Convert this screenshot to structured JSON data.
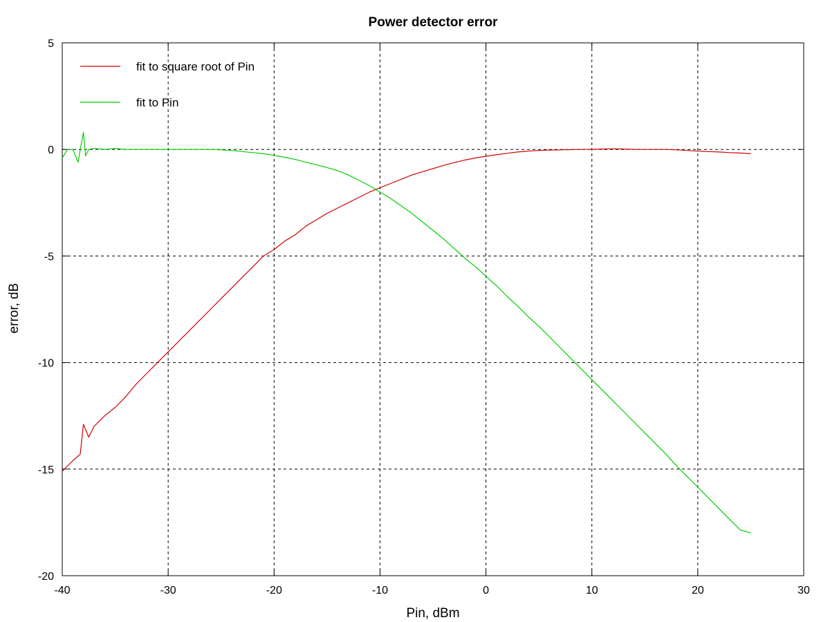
{
  "chart_data": {
    "type": "line",
    "title": "Power detector error",
    "xlabel": "Pin, dBm",
    "ylabel": "error, dB",
    "xlim": [
      -40,
      30
    ],
    "ylim": [
      -20,
      5
    ],
    "xticks": [
      -40,
      -30,
      -20,
      -10,
      0,
      10,
      20,
      30
    ],
    "yticks": [
      -20,
      -15,
      -10,
      -5,
      0,
      5
    ],
    "grid": true,
    "grid_style": "dashed",
    "legend_position": "top-left",
    "series": [
      {
        "name": "fit to square root of Pin",
        "color": "#cc0000",
        "x": [
          -40,
          -39,
          -38.3,
          -38,
          -37.5,
          -37,
          -36,
          -35,
          -34,
          -33,
          -32,
          -31,
          -30,
          -29,
          -28,
          -27,
          -26,
          -25,
          -24,
          -23,
          -22,
          -21,
          -20,
          -19,
          -18,
          -17,
          -16,
          -15,
          -14,
          -13,
          -12,
          -11,
          -10,
          -9,
          -8,
          -7,
          -6,
          -5,
          -4,
          -3,
          -2,
          -1,
          0,
          1,
          2,
          3,
          4,
          5,
          6,
          7,
          8,
          9,
          10,
          11,
          12,
          13,
          14,
          15,
          16,
          17,
          18,
          19,
          20,
          21,
          22,
          23,
          24,
          25
        ],
        "y": [
          -15.1,
          -14.6,
          -14.3,
          -12.9,
          -13.5,
          -13.0,
          -12.5,
          -12.1,
          -11.6,
          -11.0,
          -10.5,
          -10.0,
          -9.5,
          -9.0,
          -8.5,
          -8.0,
          -7.5,
          -7.0,
          -6.5,
          -6.0,
          -5.5,
          -5.0,
          -4.7,
          -4.3,
          -4.0,
          -3.6,
          -3.3,
          -3.0,
          -2.75,
          -2.5,
          -2.25,
          -2.0,
          -1.8,
          -1.6,
          -1.4,
          -1.2,
          -1.05,
          -0.9,
          -0.75,
          -0.62,
          -0.5,
          -0.4,
          -0.32,
          -0.25,
          -0.18,
          -0.12,
          -0.08,
          -0.05,
          -0.03,
          -0.02,
          -0.01,
          0.0,
          0.0,
          0.02,
          0.03,
          0.02,
          0.0,
          0.0,
          0.0,
          0.0,
          -0.02,
          -0.05,
          -0.08,
          -0.1,
          -0.12,
          -0.15,
          -0.17,
          -0.2
        ]
      },
      {
        "name": "fit to Pin",
        "color": "#00cc00",
        "x": [
          -40,
          -39.5,
          -39,
          -38.5,
          -38.3,
          -38,
          -37.8,
          -37.5,
          -37,
          -36,
          -35,
          -34,
          -33,
          -32,
          -31,
          -30,
          -29,
          -28,
          -27,
          -26,
          -25,
          -24,
          -23,
          -22,
          -21,
          -20,
          -19,
          -18,
          -17,
          -16,
          -15,
          -14,
          -13,
          -12,
          -11,
          -10,
          -9,
          -8,
          -7,
          -6,
          -5,
          -4,
          -3,
          -2,
          -1,
          0,
          1,
          2,
          3,
          4,
          5,
          6,
          7,
          8,
          9,
          10,
          11,
          12,
          13,
          14,
          15,
          16,
          17,
          18,
          19,
          20,
          21,
          22,
          23,
          24,
          25
        ],
        "y": [
          -0.4,
          0.0,
          0.0,
          -0.6,
          0.0,
          0.8,
          -0.3,
          0.0,
          0.05,
          0.0,
          0.05,
          0.0,
          0.0,
          0.0,
          0.0,
          0.0,
          0.0,
          0.0,
          0.0,
          0.0,
          -0.02,
          -0.05,
          -0.1,
          -0.15,
          -0.2,
          -0.28,
          -0.37,
          -0.47,
          -0.6,
          -0.72,
          -0.85,
          -1.0,
          -1.2,
          -1.45,
          -1.7,
          -2.0,
          -2.3,
          -2.65,
          -3.0,
          -3.4,
          -3.8,
          -4.2,
          -4.65,
          -5.1,
          -5.5,
          -5.95,
          -6.4,
          -6.9,
          -7.35,
          -7.85,
          -8.3,
          -8.8,
          -9.3,
          -9.8,
          -10.3,
          -10.8,
          -11.3,
          -11.8,
          -12.3,
          -12.8,
          -13.3,
          -13.8,
          -14.3,
          -14.85,
          -15.35,
          -15.85,
          -16.35,
          -16.85,
          -17.35,
          -17.85,
          -18.0
        ]
      }
    ]
  }
}
